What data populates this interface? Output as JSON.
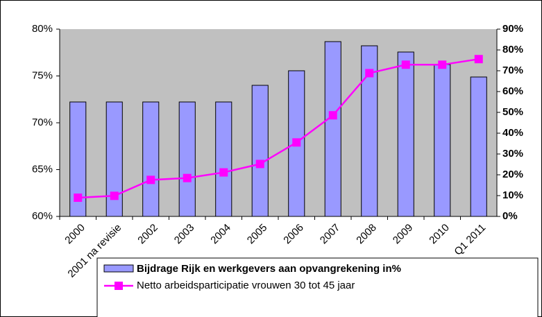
{
  "chart_data": {
    "type": "bar-line",
    "categories": [
      "2000",
      "2001 na revisie",
      "2002",
      "2003",
      "2004",
      "2005",
      "2006",
      "2007",
      "2008",
      "2009",
      "2010",
      "Q1 2011"
    ],
    "series": [
      {
        "name": "Bijdrage Rijk en werkgevers aan opvangrekening in%",
        "type": "bar",
        "axis": "y2",
        "color": "#9999ff",
        "values": [
          55,
          55,
          55,
          55,
          55,
          63,
          70,
          84,
          82,
          79,
          73,
          67
        ]
      },
      {
        "name": "Netto arbeidsparticipatie vrouwen 30 tot 45 jaar",
        "type": "line",
        "axis": "y",
        "color": "#ff00ff",
        "values": [
          62.0,
          62.2,
          63.9,
          64.1,
          64.7,
          65.6,
          67.9,
          70.8,
          75.3,
          76.2,
          76.2,
          76.8
        ]
      }
    ],
    "ylim": [
      60,
      80
    ],
    "yticks": [
      {
        "value": 60,
        "label": "60%"
      },
      {
        "value": 65,
        "label": "65%"
      },
      {
        "value": 70,
        "label": "70%"
      },
      {
        "value": 75,
        "label": "75%"
      },
      {
        "value": 80,
        "label": "80%"
      }
    ],
    "y2lim": [
      0,
      90
    ],
    "y2ticks": [
      {
        "value": 0,
        "label": "0%"
      },
      {
        "value": 10,
        "label": "10%"
      },
      {
        "value": 20,
        "label": "20%"
      },
      {
        "value": 30,
        "label": "30%"
      },
      {
        "value": 40,
        "label": "40%"
      },
      {
        "value": 50,
        "label": "50%"
      },
      {
        "value": 60,
        "label": "60%"
      },
      {
        "value": 70,
        "label": "70%"
      },
      {
        "value": 80,
        "label": "80%"
      },
      {
        "value": 90,
        "label": "90%"
      }
    ]
  }
}
